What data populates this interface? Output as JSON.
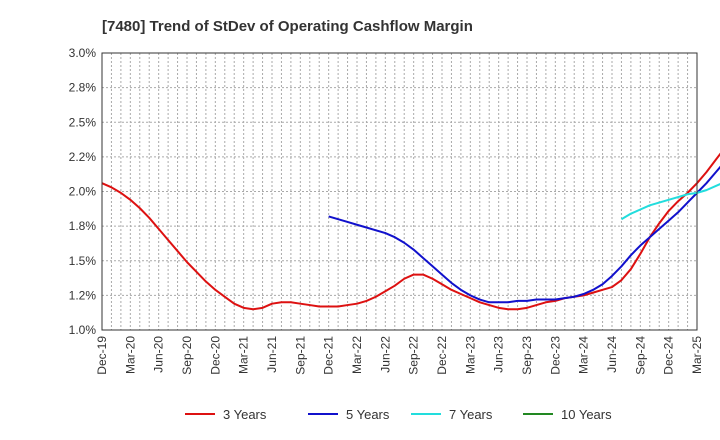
{
  "chart_data": {
    "type": "line",
    "title": "[7480]  Trend of StDev of Operating Cashflow Margin",
    "xlabel": "",
    "ylabel": "",
    "ylim": [
      1.0,
      3.0
    ],
    "y_ticks": [
      "1.0%",
      "1.2%",
      "1.5%",
      "1.8%",
      "2.0%",
      "2.2%",
      "2.5%",
      "2.8%",
      "3.0%"
    ],
    "x_ticks": [
      "Dec-19",
      "Mar-20",
      "Jun-20",
      "Sep-20",
      "Dec-20",
      "Mar-21",
      "Jun-21",
      "Sep-21",
      "Dec-21",
      "Mar-22",
      "Jun-22",
      "Sep-22",
      "Dec-22",
      "Mar-23",
      "Jun-23",
      "Sep-23",
      "Dec-23",
      "Mar-24",
      "Jun-24",
      "Sep-24",
      "Dec-24",
      "Mar-25"
    ],
    "grid": true,
    "legend_position": "bottom",
    "series": [
      {
        "name": "3 Years",
        "color": "#dd1111",
        "points": [
          [
            0,
            2.06
          ],
          [
            1,
            2.03
          ],
          [
            2,
            1.99
          ],
          [
            3,
            1.94
          ],
          [
            4,
            1.88
          ],
          [
            5,
            1.81
          ],
          [
            6,
            1.73
          ],
          [
            7,
            1.65
          ],
          [
            8,
            1.57
          ],
          [
            9,
            1.49
          ],
          [
            10,
            1.42
          ],
          [
            11,
            1.35
          ],
          [
            12,
            1.29
          ],
          [
            13,
            1.24
          ],
          [
            14,
            1.19
          ],
          [
            15,
            1.16
          ],
          [
            16,
            1.15
          ],
          [
            17,
            1.16
          ],
          [
            18,
            1.19
          ],
          [
            19,
            1.2
          ],
          [
            20,
            1.2
          ],
          [
            21,
            1.19
          ],
          [
            22,
            1.18
          ],
          [
            23,
            1.17
          ],
          [
            24,
            1.17
          ],
          [
            25,
            1.17
          ],
          [
            26,
            1.18
          ],
          [
            27,
            1.19
          ],
          [
            28,
            1.21
          ],
          [
            29,
            1.24
          ],
          [
            30,
            1.28
          ],
          [
            31,
            1.32
          ],
          [
            32,
            1.37
          ],
          [
            33,
            1.4
          ],
          [
            34,
            1.4
          ],
          [
            35,
            1.37
          ],
          [
            36,
            1.33
          ],
          [
            37,
            1.29
          ],
          [
            38,
            1.26
          ],
          [
            39,
            1.23
          ],
          [
            40,
            1.2
          ],
          [
            41,
            1.18
          ],
          [
            42,
            1.16
          ],
          [
            43,
            1.15
          ],
          [
            44,
            1.15
          ],
          [
            45,
            1.16
          ],
          [
            46,
            1.18
          ],
          [
            47,
            1.2
          ],
          [
            48,
            1.21
          ],
          [
            49,
            1.23
          ],
          [
            50,
            1.24
          ],
          [
            51,
            1.25
          ],
          [
            52,
            1.27
          ],
          [
            53,
            1.29
          ],
          [
            54,
            1.31
          ],
          [
            55,
            1.36
          ],
          [
            56,
            1.44
          ],
          [
            57,
            1.55
          ],
          [
            58,
            1.67
          ],
          [
            59,
            1.77
          ],
          [
            60,
            1.86
          ],
          [
            61,
            1.93
          ],
          [
            62,
            1.99
          ],
          [
            63,
            2.06
          ],
          [
            64,
            2.14
          ],
          [
            65,
            2.23
          ],
          [
            66,
            2.32
          ],
          [
            67,
            2.42
          ],
          [
            68,
            2.52
          ],
          [
            69,
            2.63
          ],
          [
            70,
            2.73
          ],
          [
            71,
            2.8
          ],
          [
            72,
            2.85
          ],
          [
            73,
            2.88
          ]
        ]
      },
      {
        "name": "5 Years",
        "color": "#1111cc",
        "points": [
          [
            24,
            1.82
          ],
          [
            25,
            1.8
          ],
          [
            26,
            1.78
          ],
          [
            27,
            1.76
          ],
          [
            28,
            1.74
          ],
          [
            29,
            1.72
          ],
          [
            30,
            1.7
          ],
          [
            31,
            1.67
          ],
          [
            32,
            1.63
          ],
          [
            33,
            1.58
          ],
          [
            34,
            1.52
          ],
          [
            35,
            1.46
          ],
          [
            36,
            1.4
          ],
          [
            37,
            1.34
          ],
          [
            38,
            1.29
          ],
          [
            39,
            1.25
          ],
          [
            40,
            1.22
          ],
          [
            41,
            1.2
          ],
          [
            42,
            1.2
          ],
          [
            43,
            1.2
          ],
          [
            44,
            1.21
          ],
          [
            45,
            1.21
          ],
          [
            46,
            1.22
          ],
          [
            47,
            1.22
          ],
          [
            48,
            1.22
          ],
          [
            49,
            1.23
          ],
          [
            50,
            1.24
          ],
          [
            51,
            1.26
          ],
          [
            52,
            1.29
          ],
          [
            53,
            1.33
          ],
          [
            54,
            1.39
          ],
          [
            55,
            1.46
          ],
          [
            56,
            1.54
          ],
          [
            57,
            1.61
          ],
          [
            58,
            1.67
          ],
          [
            59,
            1.73
          ],
          [
            60,
            1.79
          ],
          [
            61,
            1.85
          ],
          [
            62,
            1.92
          ],
          [
            63,
            1.99
          ],
          [
            64,
            2.06
          ],
          [
            65,
            2.14
          ],
          [
            66,
            2.22
          ],
          [
            67,
            2.3
          ],
          [
            68,
            2.38
          ],
          [
            69,
            2.45
          ],
          [
            70,
            2.5
          ]
        ]
      },
      {
        "name": "7 Years",
        "color": "#22dddd",
        "points": [
          [
            55,
            1.8
          ],
          [
            56,
            1.84
          ],
          [
            57,
            1.87
          ],
          [
            58,
            1.9
          ],
          [
            59,
            1.92
          ],
          [
            60,
            1.94
          ],
          [
            61,
            1.96
          ],
          [
            62,
            1.98
          ],
          [
            63,
            1.99
          ],
          [
            64,
            2.01
          ],
          [
            65,
            2.04
          ],
          [
            66,
            2.07
          ],
          [
            67,
            2.1
          ],
          [
            68,
            2.14
          ],
          [
            69,
            2.18
          ],
          [
            70,
            2.21
          ]
        ]
      },
      {
        "name": "10 Years",
        "color": "#228822",
        "points": []
      }
    ]
  }
}
